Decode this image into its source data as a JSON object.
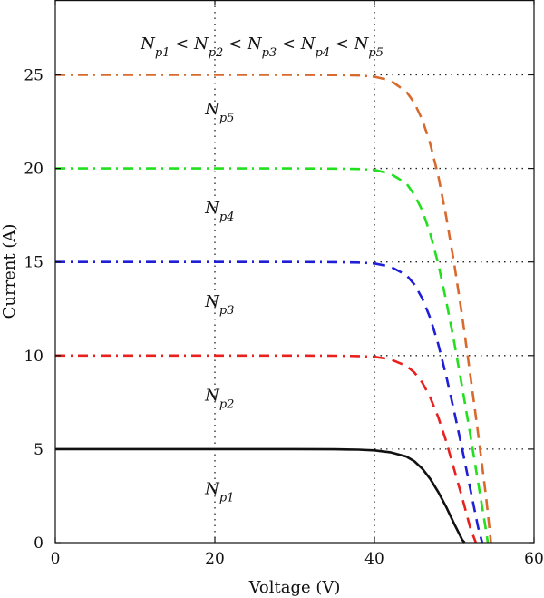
{
  "chart_data": {
    "type": "line",
    "title": "",
    "xlabel": "Voltage (V)",
    "ylabel": "Current (A)",
    "xlim": [
      0,
      60
    ],
    "ylim": [
      0,
      29
    ],
    "xticks": [
      0,
      20,
      40,
      60
    ],
    "yticks": [
      0,
      5,
      10,
      15,
      20,
      25
    ],
    "grid": "dotted at x=20, x=40 and at each series short-circuit current level",
    "order_annotation": {
      "base": [
        "N",
        "N",
        "N",
        "N",
        "N"
      ],
      "subs": [
        "p1",
        "p2",
        "p3",
        "p4",
        "p5"
      ],
      "separator": "<"
    },
    "series": [
      {
        "label_base": "N",
        "label_sub": "p1",
        "color": "#111111",
        "style": "solid",
        "x": [
          0,
          10,
          20,
          30,
          35,
          38,
          40,
          42,
          44,
          45,
          46,
          47,
          48,
          49,
          50,
          51,
          51.3
        ],
        "y": [
          5,
          5,
          5,
          5,
          4.99,
          4.97,
          4.93,
          4.83,
          4.6,
          4.35,
          3.95,
          3.4,
          2.7,
          1.9,
          1.0,
          0.15,
          0
        ]
      },
      {
        "label_base": "N",
        "label_sub": "p2",
        "color": "#e8201e",
        "style": "dash-dot to 40 V, dashed beyond",
        "x": [
          0,
          10,
          20,
          30,
          35,
          38,
          40,
          42,
          44,
          45,
          46,
          47,
          48,
          49,
          50,
          51,
          52,
          52.7
        ],
        "y": [
          10,
          10,
          10,
          10,
          9.99,
          9.97,
          9.93,
          9.8,
          9.45,
          9.1,
          8.55,
          7.75,
          6.7,
          5.4,
          3.9,
          2.4,
          0.8,
          0
        ]
      },
      {
        "label_base": "N",
        "label_sub": "p3",
        "color": "#1f1fd6",
        "style": "dash-dot to 40 V, dashed beyond",
        "x": [
          0,
          10,
          20,
          30,
          35,
          38,
          40,
          42,
          44,
          45,
          46,
          47,
          48,
          49,
          50,
          51,
          52,
          53,
          53.5
        ],
        "y": [
          15,
          15,
          15,
          15,
          14.99,
          14.97,
          14.92,
          14.75,
          14.3,
          13.8,
          13.05,
          12.0,
          10.6,
          8.9,
          7.0,
          5.0,
          2.9,
          0.8,
          0
        ]
      },
      {
        "label_base": "N",
        "label_sub": "p4",
        "color": "#22e01e",
        "style": "dash-dot to 40 V, dashed beyond",
        "x": [
          0,
          10,
          20,
          30,
          35,
          38,
          40,
          42,
          44,
          45,
          46,
          47,
          48,
          49,
          50,
          51,
          52,
          53,
          54,
          54.2
        ],
        "y": [
          20,
          20,
          20,
          20,
          19.99,
          19.97,
          19.92,
          19.72,
          19.2,
          18.6,
          17.75,
          16.5,
          14.9,
          12.9,
          10.7,
          8.3,
          5.8,
          3.2,
          0.6,
          0
        ]
      },
      {
        "label_base": "N",
        "label_sub": "p5",
        "color": "#d86a2e",
        "style": "dash-dot to 40 V, dashed beyond",
        "x": [
          0,
          10,
          20,
          30,
          35,
          38,
          40,
          42,
          44,
          45,
          46,
          47,
          48,
          49,
          50,
          51,
          52,
          53,
          54,
          54.6
        ],
        "y": [
          25,
          25,
          25,
          25,
          24.99,
          24.97,
          24.9,
          24.7,
          24.1,
          23.5,
          22.6,
          21.3,
          19.6,
          17.4,
          14.9,
          12.1,
          9.0,
          5.8,
          2.4,
          0
        ]
      }
    ]
  }
}
